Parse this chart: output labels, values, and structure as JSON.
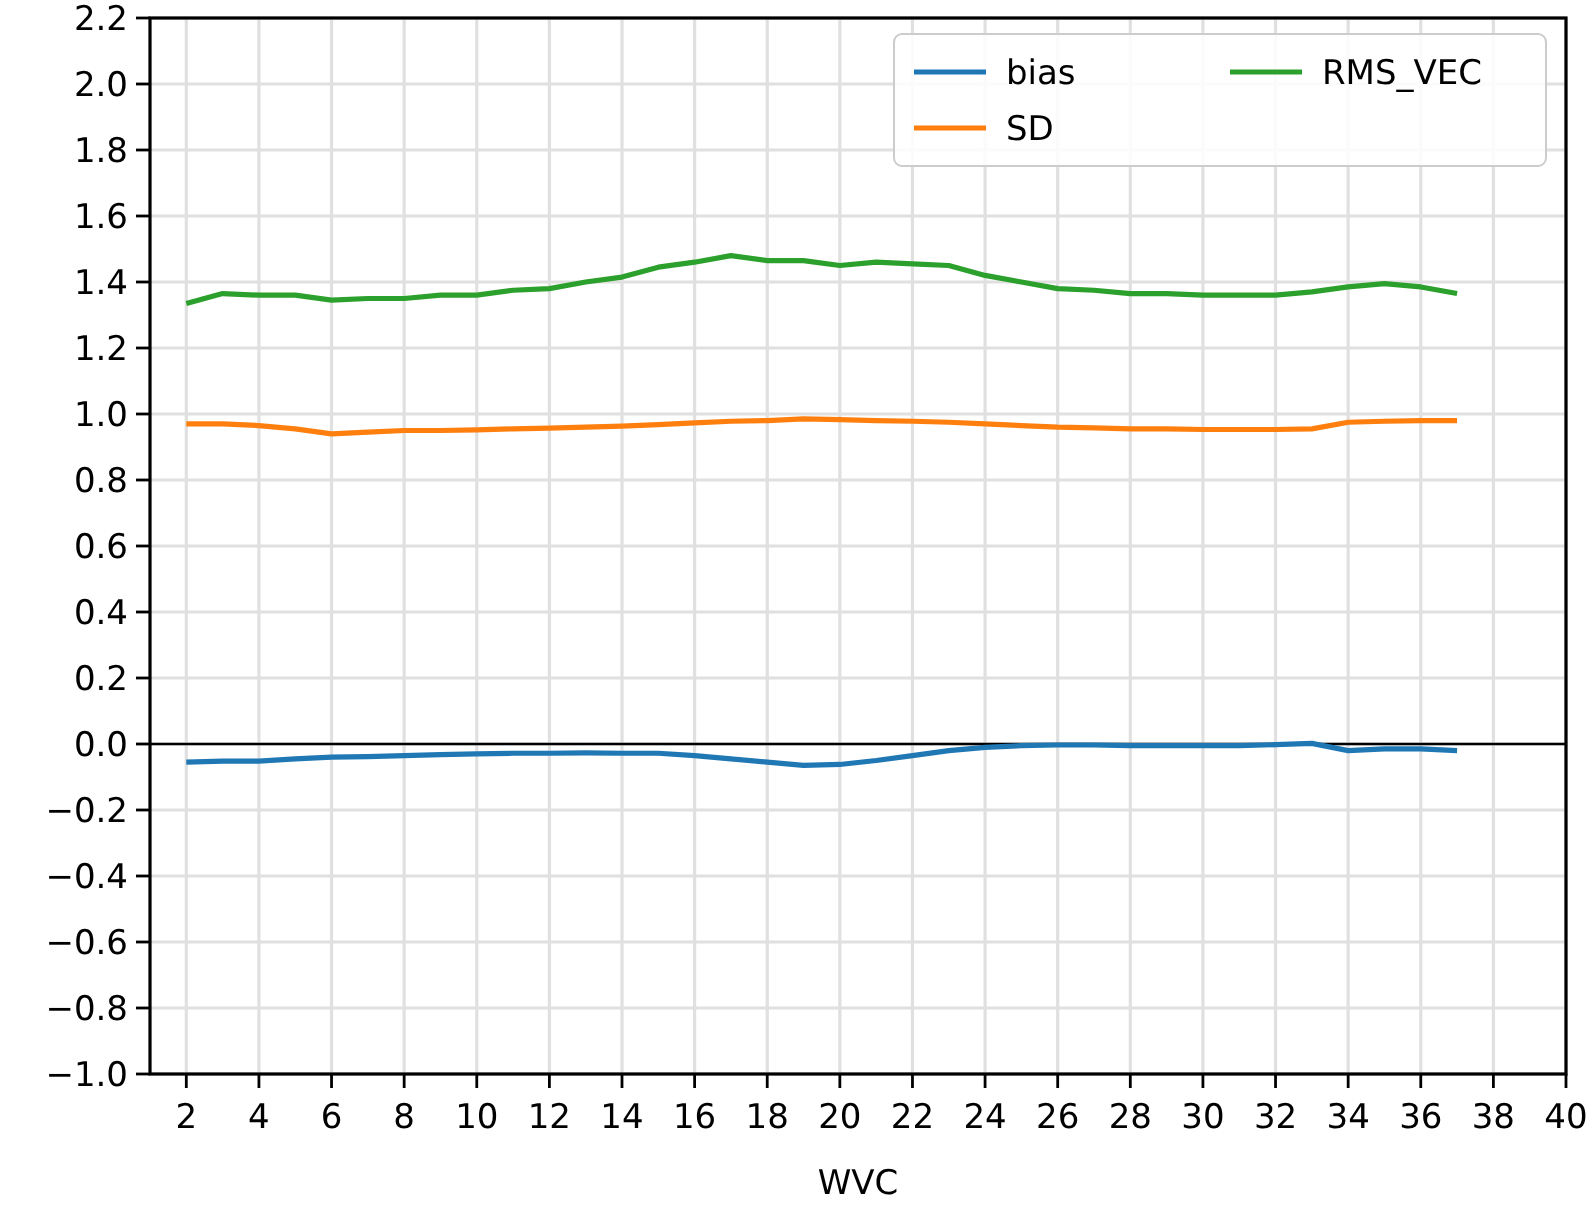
{
  "chart_data": {
    "type": "line",
    "xlabel": "WVC",
    "x": [
      2,
      3,
      4,
      5,
      6,
      7,
      8,
      9,
      10,
      11,
      12,
      13,
      14,
      15,
      16,
      17,
      18,
      19,
      20,
      21,
      22,
      23,
      24,
      25,
      26,
      27,
      28,
      29,
      30,
      31,
      32,
      33,
      34,
      35,
      36,
      37
    ],
    "series": [
      {
        "name": "bias",
        "color": "#1f77b4",
        "values": [
          -0.055,
          -0.052,
          -0.052,
          -0.045,
          -0.04,
          -0.038,
          -0.035,
          -0.032,
          -0.03,
          -0.028,
          -0.028,
          -0.027,
          -0.028,
          -0.028,
          -0.035,
          -0.045,
          -0.055,
          -0.065,
          -0.062,
          -0.05,
          -0.035,
          -0.02,
          -0.01,
          -0.005,
          -0.003,
          -0.003,
          -0.005,
          -0.005,
          -0.005,
          -0.005,
          -0.002,
          0.002,
          -0.02,
          -0.015,
          -0.015,
          -0.02
        ]
      },
      {
        "name": "SD",
        "color": "#ff7f0e",
        "values": [
          0.97,
          0.97,
          0.965,
          0.955,
          0.94,
          0.945,
          0.95,
          0.95,
          0.952,
          0.955,
          0.957,
          0.96,
          0.963,
          0.968,
          0.973,
          0.978,
          0.98,
          0.985,
          0.983,
          0.98,
          0.978,
          0.975,
          0.97,
          0.965,
          0.96,
          0.958,
          0.955,
          0.955,
          0.953,
          0.953,
          0.953,
          0.955,
          0.975,
          0.978,
          0.98,
          0.98
        ]
      },
      {
        "name": "RMS_VEC",
        "color": "#2ca02c",
        "values": [
          1.335,
          1.365,
          1.36,
          1.36,
          1.345,
          1.35,
          1.35,
          1.36,
          1.36,
          1.375,
          1.38,
          1.4,
          1.415,
          1.445,
          1.46,
          1.48,
          1.465,
          1.465,
          1.45,
          1.46,
          1.455,
          1.45,
          1.42,
          1.4,
          1.38,
          1.375,
          1.365,
          1.365,
          1.36,
          1.36,
          1.36,
          1.37,
          1.385,
          1.395,
          1.385,
          1.365
        ]
      }
    ],
    "xlim": [
      1,
      40
    ],
    "xticks": [
      2,
      4,
      6,
      8,
      10,
      12,
      14,
      16,
      18,
      20,
      22,
      24,
      26,
      28,
      30,
      32,
      34,
      36,
      38,
      40
    ],
    "ylim": [
      -1.0,
      2.2
    ],
    "yticks": [
      {
        "value": -1,
        "label": "−1.0"
      },
      {
        "value": -0.8,
        "label": "−0.8"
      },
      {
        "value": -0.6,
        "label": "−0.6"
      },
      {
        "value": -0.4,
        "label": "−0.4"
      },
      {
        "value": -0.2,
        "label": "−0.2"
      },
      {
        "value": 0,
        "label": "0.0"
      },
      {
        "value": 0.2,
        "label": "0.2"
      },
      {
        "value": 0.4,
        "label": "0.4"
      },
      {
        "value": 0.6,
        "label": "0.6"
      },
      {
        "value": 0.8,
        "label": "0.8"
      },
      {
        "value": 1,
        "label": "1.0"
      },
      {
        "value": 1.2,
        "label": "1.2"
      },
      {
        "value": 1.4,
        "label": "1.4"
      },
      {
        "value": 1.6,
        "label": "1.6"
      },
      {
        "value": 1.8,
        "label": "1.8"
      },
      {
        "value": 2,
        "label": "2.0"
      },
      {
        "value": 2.2,
        "label": "2.2"
      }
    ],
    "grid": true,
    "legend": "top right",
    "marker": "none",
    "line_style": "solid",
    "ref_lines": [
      {
        "axis": "y",
        "value": 0,
        "color": "#000000"
      }
    ]
  }
}
